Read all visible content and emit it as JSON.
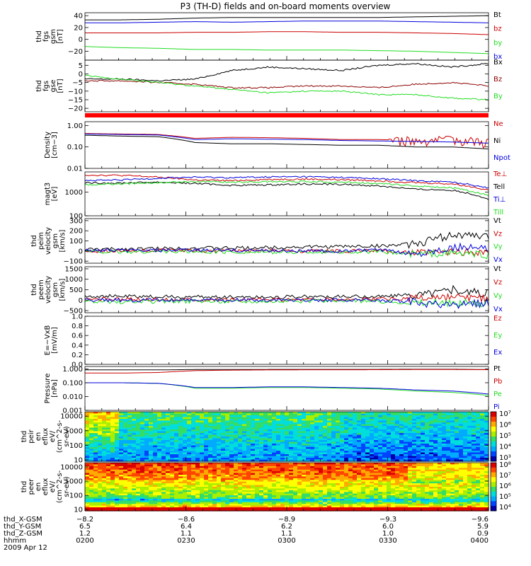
{
  "title": "P3 (TH-D) fields and on-board moments overview",
  "colors": {
    "black": "#000000",
    "red": "#cc0000",
    "green": "#22dd22",
    "blue": "#0000dd",
    "darkred": "#8b0000",
    "thickbar": "#ff0000"
  },
  "chart_data": [
    {
      "id": "fgs_gsm",
      "type": "line",
      "ylabel": [
        "thd",
        "fgs",
        "gsm",
        "[nT]"
      ],
      "ylim": [
        -35,
        45
      ],
      "yticks": [
        "40",
        "20",
        "0",
        "−20"
      ],
      "ytick_values": [
        40,
        20,
        0,
        -20
      ],
      "series": [
        {
          "name": "Bt",
          "color": "black",
          "values": [
            33,
            33,
            34,
            36,
            37,
            37,
            37,
            37,
            37,
            38,
            39,
            40
          ]
        },
        {
          "name": "bz",
          "color": "red",
          "values": [
            11,
            11,
            11,
            12,
            12,
            13,
            13,
            12,
            12,
            11,
            10,
            8
          ]
        },
        {
          "name": "by",
          "color": "green",
          "values": [
            -12,
            -14,
            -15,
            -17,
            -17,
            -18,
            -18,
            -18,
            -19,
            -20,
            -22,
            -24
          ]
        },
        {
          "name": "bx",
          "color": "blue",
          "values": [
            28,
            28,
            29,
            30,
            29,
            30,
            31,
            31,
            31,
            30,
            29,
            28
          ]
        }
      ]
    },
    {
      "id": "fgs_gse",
      "type": "line",
      "ylabel": [
        "thd",
        "fgs",
        "gse",
        "[nT]"
      ],
      "ylim": [
        -22,
        8
      ],
      "yticks": [
        "5",
        "0",
        "−5",
        "−10",
        "−15",
        "−20"
      ],
      "ytick_values": [
        5,
        0,
        -5,
        -10,
        -15,
        -20
      ],
      "series": [
        {
          "name": "Bx",
          "color": "black",
          "values": [
            -3,
            -3,
            -4,
            -3,
            2,
            4,
            3,
            2,
            5,
            6,
            4,
            6
          ]
        },
        {
          "name": "Bz",
          "color": "darkred",
          "values": [
            -4,
            -4,
            -5,
            -6,
            -8,
            -8,
            -7,
            -7,
            -8,
            -6,
            -5,
            -7
          ]
        },
        {
          "name": "By",
          "color": "green",
          "values": [
            -1,
            -3,
            -5,
            -7,
            -9,
            -11,
            -10,
            -10,
            -12,
            -12,
            -14,
            -15
          ]
        }
      ]
    },
    {
      "id": "density",
      "type": "line",
      "log": true,
      "ylabel": [
        "Density",
        "[cm−3]"
      ],
      "ylim": [
        0.01,
        1.5
      ],
      "yticks": [
        "1.00",
        "0.10",
        "0.01"
      ],
      "ytick_values": [
        1,
        0.1,
        0.01
      ],
      "series": [
        {
          "name": "Ne",
          "color": "red",
          "values": [
            0.42,
            0.4,
            0.38,
            0.25,
            0.28,
            0.27,
            0.25,
            0.22,
            0.22,
            0.2,
            0.22,
            0.18
          ]
        },
        {
          "name": "Ni",
          "color": "black",
          "values": [
            0.35,
            0.32,
            0.3,
            0.16,
            0.14,
            0.14,
            0.13,
            0.12,
            0.12,
            0.1,
            0.1,
            0.08
          ]
        },
        {
          "name": "Npot",
          "color": "blue",
          "values": [
            0.4,
            0.38,
            0.36,
            0.22,
            0.24,
            0.23,
            0.22,
            0.2,
            0.19,
            0.18,
            0.17,
            0.15
          ]
        }
      ]
    },
    {
      "id": "temp",
      "type": "line",
      "log": true,
      "ylabel": [
        "magt3",
        "[eV]"
      ],
      "ylim": [
        100,
        7000
      ],
      "yticks": [
        "1000",
        "100"
      ],
      "ytick_values": [
        1000,
        100
      ],
      "series": [
        {
          "name": "Te⊥",
          "color": "red",
          "values": [
            5200,
            5000,
            4200,
            3200,
            3000,
            3400,
            3500,
            3300,
            3000,
            2500,
            2200,
            1200
          ]
        },
        {
          "name": "Tell",
          "color": "black",
          "values": [
            2400,
            2400,
            2600,
            2300,
            1900,
            2000,
            2200,
            2100,
            1800,
            1300,
            1200,
            500
          ]
        },
        {
          "name": "Ti⊥",
          "color": "blue",
          "values": [
            3000,
            3200,
            3800,
            4200,
            4000,
            4300,
            4400,
            4100,
            3600,
            3000,
            2600,
            1500
          ]
        },
        {
          "name": "Till",
          "color": "green",
          "values": [
            2000,
            2200,
            2500,
            2800,
            2600,
            2700,
            2800,
            2600,
            2300,
            1800,
            1500,
            700
          ]
        }
      ]
    },
    {
      "id": "peim_vel",
      "type": "line",
      "ylabel": [
        "thd",
        "peim",
        "velocity",
        "gsm",
        "[km/s]"
      ],
      "ylim": [
        -120,
        320
      ],
      "yticks": [
        "300",
        "200",
        "100",
        "0",
        "−100"
      ],
      "ytick_values": [
        300,
        200,
        100,
        0,
        -100
      ],
      "series": [
        {
          "name": "Vt",
          "color": "black",
          "values": [
            15,
            20,
            25,
            30,
            28,
            35,
            40,
            45,
            50,
            70,
            160,
            140
          ]
        },
        {
          "name": "Vz",
          "color": "red",
          "values": [
            0,
            0,
            5,
            0,
            3,
            2,
            0,
            0,
            5,
            -20,
            -10,
            -5
          ]
        },
        {
          "name": "Vy",
          "color": "green",
          "values": [
            -5,
            -10,
            -5,
            -8,
            -10,
            -12,
            -10,
            -8,
            -10,
            -30,
            -20,
            -40
          ]
        },
        {
          "name": "Vx",
          "color": "blue",
          "values": [
            5,
            5,
            5,
            8,
            5,
            5,
            0,
            0,
            10,
            -30,
            40,
            20
          ]
        }
      ]
    },
    {
      "id": "peem_vel",
      "type": "line",
      "ylabel": [
        "thd",
        "peem",
        "velocity",
        "gsm",
        "[km/s]"
      ],
      "ylim": [
        -600,
        1600
      ],
      "yticks": [
        "1500",
        "1000",
        "500",
        "0",
        "−500"
      ],
      "ytick_values": [
        1500,
        1000,
        500,
        0,
        -500
      ],
      "series": [
        {
          "name": "Vt",
          "color": "black",
          "values": [
            200,
            180,
            160,
            150,
            160,
            150,
            170,
            160,
            180,
            250,
            500,
            300
          ]
        },
        {
          "name": "Vz",
          "color": "red",
          "values": [
            50,
            40,
            30,
            40,
            30,
            20,
            40,
            30,
            50,
            80,
            100,
            60
          ]
        },
        {
          "name": "Vy",
          "color": "green",
          "values": [
            -100,
            -80,
            -60,
            -50,
            -60,
            -40,
            -50,
            -40,
            -60,
            -100,
            -150,
            -120
          ]
        },
        {
          "name": "Vx",
          "color": "blue",
          "values": [
            0,
            0,
            0,
            0,
            0,
            0,
            0,
            0,
            0,
            -100,
            -300,
            -100
          ]
        }
      ]
    },
    {
      "id": "evxb",
      "type": "line",
      "ylabel": [
        "E=−VxB",
        "[mV/m]"
      ],
      "ylim": [
        0,
        1
      ],
      "yticks": [
        "1.0",
        "0.8",
        "0.6",
        "0.4",
        "0.2",
        "0.0"
      ],
      "ytick_values": [
        1,
        0.8,
        0.6,
        0.4,
        0.2,
        0
      ],
      "series": [
        {
          "name": "Ez",
          "color": "red",
          "values": []
        },
        {
          "name": "Ey",
          "color": "green",
          "values": []
        },
        {
          "name": "Ex",
          "color": "blue",
          "values": []
        }
      ]
    },
    {
      "id": "pressure",
      "type": "line",
      "log": true,
      "ylabel": [
        "Pressure",
        "[nPa]"
      ],
      "ylim": [
        0.001,
        1.5
      ],
      "yticks": [
        "1.000",
        "0.100",
        "0.010",
        "0.001"
      ],
      "ytick_values": [
        1,
        0.1,
        0.01,
        0.001
      ],
      "series": [
        {
          "name": "Pt",
          "color": "black",
          "values": [
            0.85,
            0.85,
            0.85,
            0.9,
            0.9,
            0.92,
            0.93,
            0.93,
            0.93,
            0.95,
            0.95,
            0.9
          ]
        },
        {
          "name": "Pb",
          "color": "red",
          "values": [
            0.5,
            0.5,
            0.55,
            0.75,
            0.82,
            0.85,
            0.87,
            0.87,
            0.88,
            0.9,
            0.9,
            0.88
          ]
        },
        {
          "name": "Pe",
          "color": "green",
          "values": [
            0.1,
            0.1,
            0.09,
            0.04,
            0.04,
            0.045,
            0.045,
            0.04,
            0.035,
            0.025,
            0.02,
            0.012
          ]
        },
        {
          "name": "Pi",
          "color": "blue",
          "values": [
            0.1,
            0.1,
            0.09,
            0.045,
            0.045,
            0.05,
            0.05,
            0.045,
            0.04,
            0.03,
            0.025,
            0.015
          ]
        }
      ]
    },
    {
      "id": "peir_spec",
      "type": "heatmap",
      "log": true,
      "ylabel": [
        "thd",
        "peir",
        "en",
        "eflux",
        "eV/",
        "(cm^2-s-",
        "sr-eV)"
      ],
      "ylim": [
        8,
        20000
      ],
      "yticks": [
        "10000",
        "1000",
        "100",
        "10"
      ],
      "ytick_values": [
        10000,
        1000,
        100,
        10
      ],
      "colorbar_ticks": [
        "10⁷",
        "10⁶",
        "10⁵",
        "10⁴",
        "10³"
      ]
    },
    {
      "id": "peer_spec",
      "type": "heatmap",
      "log": true,
      "ylabel": [
        "thd",
        "peer",
        "en",
        "eflux",
        "eV/",
        "(cm^2-s-",
        "sr-eV)"
      ],
      "ylim": [
        8,
        20000
      ],
      "yticks": [
        "10000",
        "1000",
        "100",
        "10"
      ],
      "ytick_values": [
        10000,
        1000,
        100,
        10
      ],
      "colorbar_ticks": [
        "10⁸",
        "10⁷",
        "10⁶",
        "10⁵",
        "10⁴"
      ]
    }
  ],
  "footer": {
    "rows": [
      {
        "label": "thd_X-GSM",
        "values": [
          "−8.2",
          "−8.6",
          "−8.9",
          "−9.3",
          "−9.6"
        ]
      },
      {
        "label": "thd_Y-GSM",
        "values": [
          "6.5",
          "6.4",
          "6.2",
          "6.0",
          "5.9"
        ]
      },
      {
        "label": "thd_Z-GSM",
        "values": [
          "1.2",
          "1.1",
          "1.1",
          "1.0",
          "0.9"
        ]
      },
      {
        "label": "hhmm",
        "values": [
          "0200",
          "0230",
          "0300",
          "0330",
          "0400"
        ]
      }
    ],
    "date": "2009 Apr 12"
  }
}
